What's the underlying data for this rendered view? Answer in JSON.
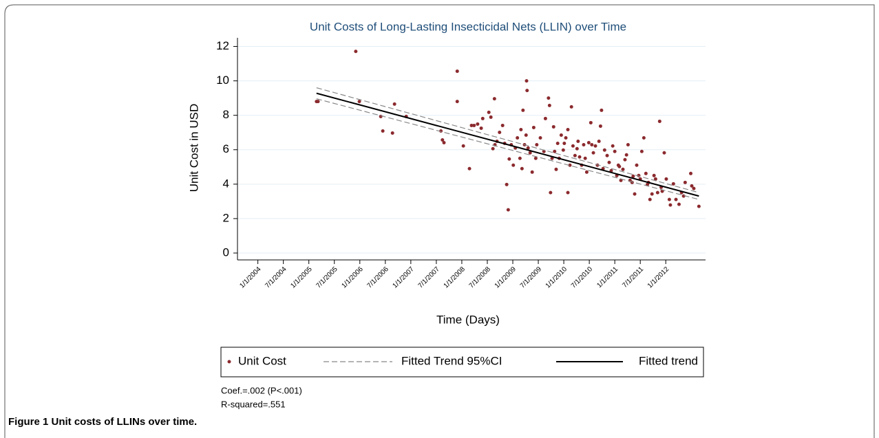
{
  "chart_data": {
    "type": "scatter",
    "title": "Unit Costs of Long-Lasting Insecticidal Nets (LLIN) over Time",
    "x_label": "Time (Days)",
    "y_label": "Unit Cost in USD",
    "xlim": [
      2003.6,
      2012.78
    ],
    "ylim": [
      -0.4,
      12.5
    ],
    "xticks": [
      {
        "value": 2004,
        "label": "1/1/2004"
      },
      {
        "value": 2004.5,
        "label": "7/1/2004"
      },
      {
        "value": 2005,
        "label": "1/1/2005"
      },
      {
        "value": 2005.5,
        "label": "7/1/2005"
      },
      {
        "value": 2006,
        "label": "1/1/2006"
      },
      {
        "value": 2006.5,
        "label": "7/1/2006"
      },
      {
        "value": 2007,
        "label": "1/1/2007"
      },
      {
        "value": 2007.5,
        "label": "7/1/2007"
      },
      {
        "value": 2008,
        "label": "1/1/2008"
      },
      {
        "value": 2008.5,
        "label": "7/1/2008"
      },
      {
        "value": 2009,
        "label": "1/1/2009"
      },
      {
        "value": 2009.5,
        "label": "7/1/2009"
      },
      {
        "value": 2010,
        "label": "1/1/2010"
      },
      {
        "value": 2010.5,
        "label": "7/1/2010"
      },
      {
        "value": 2011,
        "label": "1/1/2011"
      },
      {
        "value": 2011.5,
        "label": "7/1/2011"
      },
      {
        "value": 2012,
        "label": "1/1/2012"
      }
    ],
    "yticks": [
      0,
      2,
      4,
      6,
      8,
      10,
      12
    ],
    "grid": true,
    "series": [
      {
        "name": "Unit Cost",
        "type": "scatter",
        "color": "#8b2a2e",
        "x": [
          2005.15,
          2005.18,
          2005.92,
          2005.99,
          2006.41,
          2006.45,
          2006.64,
          2006.68,
          2006.91,
          2007.59,
          2007.62,
          2007.65,
          2007.91,
          2007.91,
          2008.03,
          2008.15,
          2008.19,
          2008.24,
          2008.31,
          2008.38,
          2008.41,
          2008.53,
          2008.57,
          2008.61,
          2008.64,
          2008.65,
          2008.69,
          2008.74,
          2008.8,
          2008.84,
          2008.88,
          2008.91,
          2008.93,
          2008.97,
          2009.01,
          2009.05,
          2009.09,
          2009.14,
          2009.16,
          2009.18,
          2009.2,
          2009.23,
          2009.26,
          2009.27,
          2009.28,
          2009.3,
          2009.34,
          2009.38,
          2009.41,
          2009.45,
          2009.47,
          2009.54,
          2009.61,
          2009.64,
          2009.7,
          2009.72,
          2009.74,
          2009.77,
          2009.8,
          2009.82,
          2009.85,
          2009.88,
          2009.91,
          2009.95,
          2009.99,
          2010.01,
          2010.04,
          2010.08,
          2010.08,
          2010.12,
          2010.15,
          2010.18,
          2010.22,
          2010.26,
          2010.28,
          2010.31,
          2010.35,
          2010.39,
          2010.42,
          2010.45,
          2010.49,
          2010.53,
          2010.55,
          2010.58,
          2010.62,
          2010.66,
          2010.69,
          2010.72,
          2010.74,
          2010.77,
          2010.8,
          2010.85,
          2010.89,
          2010.93,
          2010.96,
          2011.0,
          2011.04,
          2011.07,
          2011.09,
          2011.12,
          2011.16,
          2011.2,
          2011.23,
          2011.26,
          2011.3,
          2011.34,
          2011.36,
          2011.39,
          2011.43,
          2011.47,
          2011.5,
          2011.53,
          2011.57,
          2011.61,
          2011.64,
          2011.66,
          2011.69,
          2011.73,
          2011.77,
          2011.8,
          2011.84,
          2011.88,
          2011.91,
          2011.93,
          2011.97,
          2012.01,
          2012.07,
          2012.09,
          2012.15,
          2012.2,
          2012.26,
          2012.31,
          2012.35,
          2012.38,
          2012.49,
          2012.51,
          2012.55,
          2012.65
        ],
        "values": [
          8.8,
          8.8,
          11.71,
          8.8,
          7.93,
          7.09,
          6.97,
          8.65,
          7.93,
          7.09,
          6.57,
          6.41,
          10.56,
          8.8,
          6.22,
          4.9,
          7.41,
          7.41,
          7.49,
          7.25,
          7.81,
          8.17,
          7.89,
          6.06,
          8.96,
          6.29,
          6.49,
          7.01,
          7.41,
          6.37,
          3.98,
          2.51,
          5.46,
          6.29,
          5.1,
          6.1,
          6.69,
          5.5,
          7.17,
          4.9,
          8.29,
          6.29,
          6.85,
          10.0,
          9.44,
          6.1,
          5.82,
          4.7,
          7.29,
          5.5,
          6.29,
          6.69,
          5.9,
          7.81,
          9.0,
          8.57,
          3.51,
          5.5,
          7.33,
          5.9,
          4.86,
          6.37,
          5.5,
          6.85,
          5.98,
          6.37,
          6.69,
          7.17,
          3.51,
          5.1,
          8.49,
          6.22,
          5.66,
          6.06,
          6.49,
          5.58,
          5.1,
          6.29,
          5.5,
          4.7,
          6.41,
          7.57,
          6.29,
          5.82,
          6.22,
          5.1,
          6.49,
          7.37,
          8.29,
          4.9,
          5.98,
          5.66,
          5.26,
          4.78,
          6.22,
          5.9,
          4.5,
          5.1,
          5.02,
          4.22,
          4.86,
          5.42,
          5.7,
          6.29,
          4.22,
          4.1,
          4.46,
          3.43,
          5.1,
          4.5,
          4.3,
          5.9,
          6.69,
          4.62,
          3.98,
          4.1,
          3.11,
          3.43,
          4.5,
          4.3,
          3.51,
          7.65,
          3.82,
          3.59,
          5.82,
          4.3,
          3.11,
          2.79,
          4.02,
          3.11,
          2.83,
          3.51,
          3.31,
          4.1,
          4.62,
          3.9,
          3.75,
          2.71
        ]
      },
      {
        "name": "Fitted Trend 95%CI",
        "type": "ci",
        "color": "#888888",
        "x": [
          2005.15,
          2012.65
        ],
        "values": [
          9.6,
          3.51
        ],
        "lower": [
          8.96,
          3.11
        ]
      },
      {
        "name": "Fitted trend",
        "type": "line",
        "color": "#000000",
        "x": [
          2005.15,
          2012.65
        ],
        "values": [
          9.28,
          3.31
        ]
      }
    ],
    "notes": [
      "Coef.=.002 (P<.001)",
      "R-squared=.551"
    ],
    "caption": "Figure 1 Unit costs of LLINs over time."
  }
}
